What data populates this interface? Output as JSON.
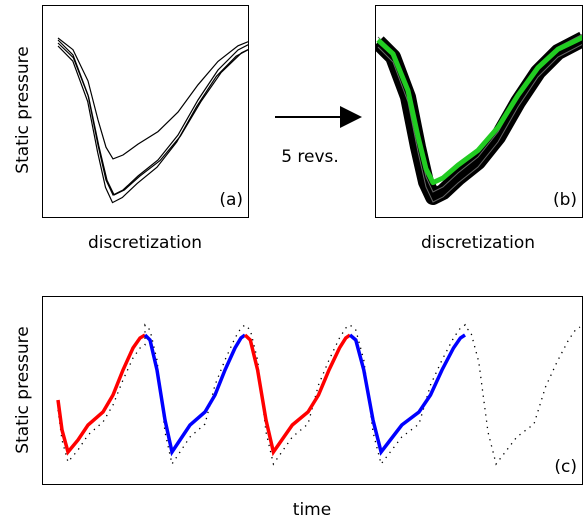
{
  "panel_a": {
    "ylabel": "Static pressure",
    "xlabel": "discretization",
    "tag": "(a)"
  },
  "panel_b": {
    "xlabel": "discretization",
    "tag": "(b)"
  },
  "arrow_label": "5 revs.",
  "panel_c": {
    "ylabel": "Static pressure",
    "xlabel": "time",
    "tag": "(c)"
  }
}
